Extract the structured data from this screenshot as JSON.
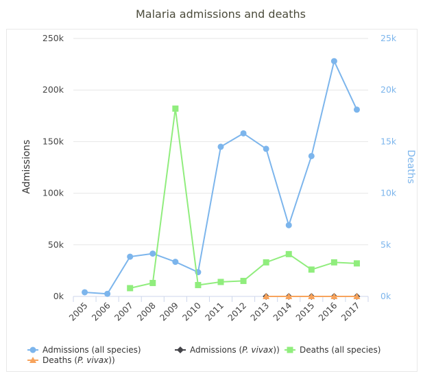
{
  "chart_data": {
    "type": "line",
    "title": "Malaria admissions and deaths",
    "ylabel": "Admissions",
    "y2label": "Deaths",
    "ylim": [
      0,
      250000
    ],
    "y2lim": [
      0,
      25000
    ],
    "y_ticks": [
      "0k",
      "50k",
      "100k",
      "150k",
      "200k",
      "250k"
    ],
    "y2_ticks": [
      "0k",
      "5k",
      "10k",
      "15k",
      "20k",
      "25k"
    ],
    "categories": [
      "2005",
      "2006",
      "2007",
      "2008",
      "2009",
      "2010",
      "2011",
      "2012",
      "2013",
      "2014",
      "2015",
      "2016",
      "2017"
    ],
    "grid": true,
    "legend_position": "bottom",
    "series": [
      {
        "name": "Admissions (all species)",
        "legend_parts": [
          {
            "text": "Admissions (all species)",
            "italic": false
          }
        ],
        "axis": "left",
        "color": "#7cb5ec",
        "marker": "circle",
        "values": [
          4000,
          2500,
          38500,
          41500,
          33500,
          23500,
          145000,
          158000,
          143000,
          69000,
          136000,
          228000,
          181000
        ]
      },
      {
        "name": "Admissions (P. vivax))",
        "legend_parts": [
          {
            "text": "Admissions (",
            "italic": false
          },
          {
            "text": "P. vivax",
            "italic": true
          },
          {
            "text": "))",
            "italic": false
          }
        ],
        "axis": "left",
        "color": "#434348",
        "marker": "diamond",
        "values": [
          null,
          null,
          null,
          null,
          null,
          null,
          null,
          null,
          0,
          0,
          0,
          0,
          0
        ]
      },
      {
        "name": "Deaths (all species)",
        "legend_parts": [
          {
            "text": "Deaths (all species)",
            "italic": false
          }
        ],
        "axis": "right",
        "color": "#90ed7d",
        "marker": "square",
        "values": [
          null,
          null,
          800,
          1300,
          18200,
          1100,
          1400,
          1500,
          3300,
          4100,
          2600,
          3300,
          3200
        ]
      },
      {
        "name": "Deaths (P. vivax))",
        "legend_parts": [
          {
            "text": "Deaths (",
            "italic": false
          },
          {
            "text": "P. vivax",
            "italic": true
          },
          {
            "text": "))",
            "italic": false
          }
        ],
        "axis": "right",
        "color": "#f7a35c",
        "marker": "triangle",
        "values": [
          null,
          null,
          null,
          null,
          null,
          null,
          null,
          null,
          0,
          0,
          0,
          0,
          0
        ]
      }
    ]
  }
}
